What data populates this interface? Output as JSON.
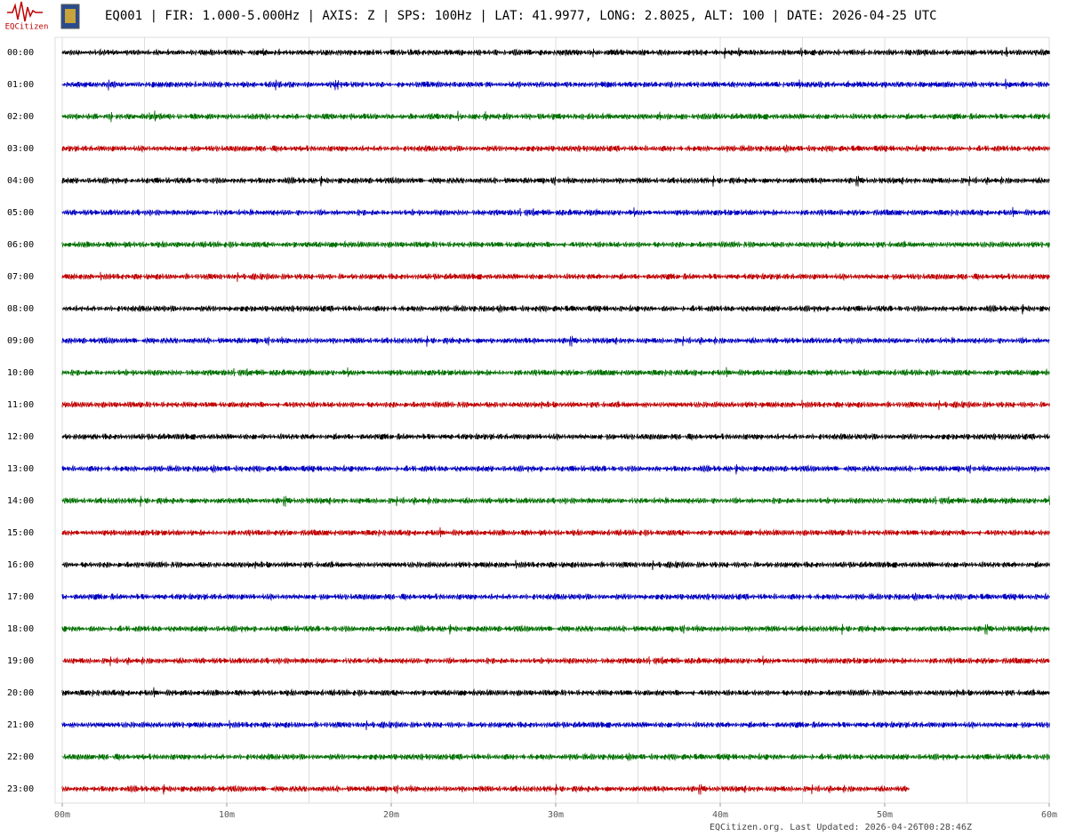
{
  "chart_data": {
    "type": "helicorder",
    "logo_text": "EQCitizen",
    "title": "EQ001 | FIR: 1.000-5.000Hz | AXIS: Z | SPS: 100Hz | LAT: 41.9977, LONG: 2.8025, ALT: 100 | DATE: 2026-04-25 UTC",
    "footer": "EQCitizen.org. Last Updated: 2026-04-26T00:28:46Z",
    "categories": [
      "00:00",
      "01:00",
      "02:00",
      "03:00",
      "04:00",
      "05:00",
      "06:00",
      "07:00",
      "08:00",
      "09:00",
      "10:00",
      "11:00",
      "12:00",
      "13:00",
      "14:00",
      "15:00",
      "16:00",
      "17:00",
      "18:00",
      "19:00",
      "20:00",
      "21:00",
      "22:00",
      "23:00"
    ],
    "values": [
      60,
      60,
      60,
      60,
      60,
      60,
      60,
      60,
      60,
      60,
      60,
      60,
      60,
      60,
      60,
      60,
      60,
      60,
      60,
      60,
      60,
      60,
      60,
      51.5
    ],
    "colors": [
      "#000000",
      "#0000c0",
      "#007000",
      "#c00000",
      "#000000",
      "#0000c0",
      "#007000",
      "#c00000",
      "#000000",
      "#0000c0",
      "#007000",
      "#c00000",
      "#000000",
      "#0000c0",
      "#007000",
      "#c00000",
      "#000000",
      "#0000c0",
      "#007000",
      "#c00000",
      "#000000",
      "#0000c0",
      "#007000",
      "#c00000"
    ],
    "xlim": [
      0,
      60
    ],
    "xticks": [
      {
        "value": 0,
        "label": "00m"
      },
      {
        "value": 10,
        "label": "10m"
      },
      {
        "value": 20,
        "label": "20m"
      },
      {
        "value": 30,
        "label": "30m"
      },
      {
        "value": 40,
        "label": "40m"
      },
      {
        "value": 50,
        "label": "50m"
      },
      {
        "value": 60,
        "label": "60m"
      }
    ],
    "xgrid": [
      0,
      5,
      10,
      15,
      20,
      25,
      30,
      35,
      40,
      45,
      50,
      55,
      60
    ]
  }
}
